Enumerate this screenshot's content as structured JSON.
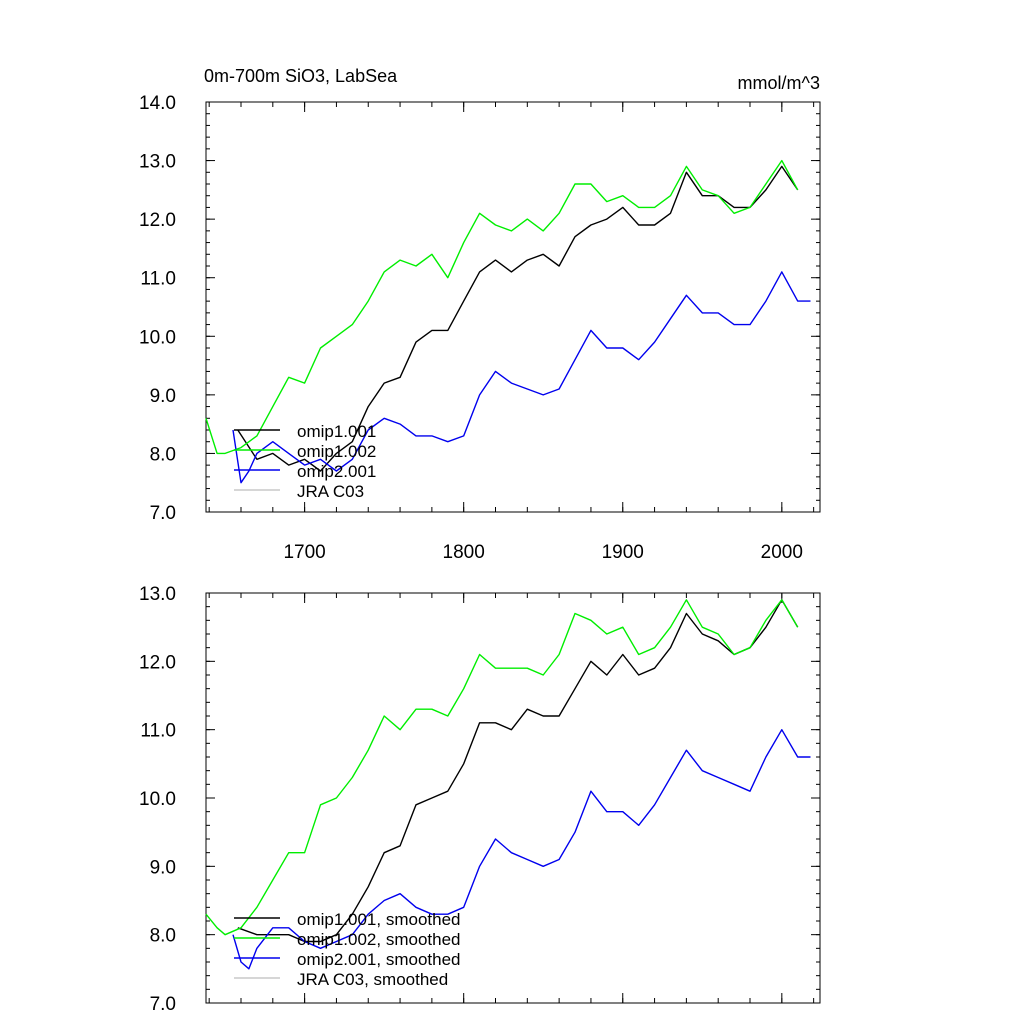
{
  "chart_data": [
    {
      "type": "line",
      "title": "0m-700m SiO3, LabSea",
      "units": "mmol/m^3",
      "xlim": [
        1638,
        2024
      ],
      "ylim": [
        7.0,
        14.0
      ],
      "x_ticks": [
        1700,
        1800,
        1900,
        2000
      ],
      "x_tick_labels": [
        "1700",
        "1800",
        "1900",
        "2000"
      ],
      "y_ticks": [
        7,
        8,
        9,
        10,
        11,
        12,
        13,
        14
      ],
      "y_tick_labels": [
        "7.0",
        "8.0",
        "9.0",
        "10.0",
        "11.0",
        "12.0",
        "13.0",
        "14.0"
      ],
      "legend_position": "bottom-left",
      "series": [
        {
          "name": "omip1.001",
          "color": "#000000",
          "x": [
            1658,
            1670,
            1680,
            1690,
            1700,
            1710,
            1720,
            1730,
            1740,
            1750,
            1760,
            1770,
            1780,
            1790,
            1800,
            1810,
            1820,
            1830,
            1840,
            1850,
            1860,
            1870,
            1880,
            1890,
            1900,
            1910,
            1920,
            1930,
            1940,
            1950,
            1960,
            1970,
            1980,
            1990,
            2000,
            2010
          ],
          "y": [
            8.4,
            7.9,
            8.0,
            7.8,
            7.9,
            7.7,
            8.0,
            8.2,
            8.8,
            9.2,
            9.3,
            9.9,
            10.1,
            10.1,
            10.6,
            11.1,
            11.3,
            11.1,
            11.3,
            11.4,
            11.2,
            11.7,
            11.9,
            12.0,
            12.2,
            11.9,
            11.9,
            12.1,
            12.8,
            12.4,
            12.4,
            12.2,
            12.2,
            12.5,
            12.9,
            12.5
          ]
        },
        {
          "name": "omip1.002",
          "color": "#00ee00",
          "x": [
            1638,
            1645,
            1650,
            1660,
            1670,
            1680,
            1690,
            1700,
            1710,
            1720,
            1730,
            1740,
            1750,
            1760,
            1770,
            1780,
            1790,
            1800,
            1810,
            1820,
            1830,
            1840,
            1850,
            1860,
            1870,
            1880,
            1890,
            1900,
            1910,
            1920,
            1930,
            1940,
            1950,
            1960,
            1970,
            1980,
            1990,
            2000,
            2010
          ],
          "y": [
            8.6,
            8.0,
            8.0,
            8.1,
            8.3,
            8.8,
            9.3,
            9.2,
            9.8,
            10.0,
            10.2,
            10.6,
            11.1,
            11.3,
            11.2,
            11.4,
            11.0,
            11.6,
            12.1,
            11.9,
            11.8,
            12.0,
            11.8,
            12.1,
            12.6,
            12.6,
            12.3,
            12.4,
            12.2,
            12.2,
            12.4,
            12.9,
            12.5,
            12.4,
            12.1,
            12.2,
            12.6,
            13.0,
            12.5
          ]
        },
        {
          "name": "omip2.001",
          "color": "#0000ee",
          "x": [
            1655,
            1660,
            1665,
            1670,
            1680,
            1690,
            1700,
            1710,
            1720,
            1730,
            1740,
            1750,
            1760,
            1770,
            1780,
            1790,
            1800,
            1810,
            1820,
            1830,
            1840,
            1850,
            1860,
            1870,
            1880,
            1890,
            1900,
            1910,
            1920,
            1930,
            1940,
            1950,
            1960,
            1970,
            1980,
            1990,
            2000,
            2010,
            2018
          ],
          "y": [
            8.4,
            7.5,
            7.7,
            8.0,
            8.2,
            8.0,
            7.8,
            7.9,
            7.7,
            7.9,
            8.4,
            8.6,
            8.5,
            8.3,
            8.3,
            8.2,
            8.3,
            9.0,
            9.4,
            9.2,
            9.1,
            9.0,
            9.1,
            9.6,
            10.1,
            9.8,
            9.8,
            9.6,
            9.9,
            10.3,
            10.7,
            10.4,
            10.4,
            10.2,
            10.2,
            10.6,
            11.1,
            10.6,
            10.6
          ]
        },
        {
          "name": "JRA C03",
          "color": "#c8c8c8",
          "x": [],
          "y": []
        }
      ]
    },
    {
      "type": "line",
      "title": "",
      "units": "",
      "xlim": [
        1638,
        2024
      ],
      "ylim": [
        7.0,
        13.0
      ],
      "x_ticks": [
        1700,
        1800,
        1900,
        2000
      ],
      "x_tick_labels": [],
      "y_ticks": [
        7,
        8,
        9,
        10,
        11,
        12,
        13
      ],
      "y_tick_labels": [
        "7.0",
        "8.0",
        "9.0",
        "10.0",
        "11.0",
        "12.0",
        "13.0"
      ],
      "legend_position": "bottom-left",
      "series": [
        {
          "name": "omip1.001, smoothed",
          "color": "#000000",
          "x": [
            1658,
            1670,
            1680,
            1690,
            1700,
            1710,
            1720,
            1730,
            1740,
            1750,
            1760,
            1770,
            1780,
            1790,
            1800,
            1810,
            1820,
            1830,
            1840,
            1850,
            1860,
            1870,
            1880,
            1890,
            1900,
            1910,
            1920,
            1930,
            1940,
            1950,
            1960,
            1970,
            1980,
            1990,
            2000,
            2010
          ],
          "y": [
            8.1,
            8.0,
            8.0,
            8.0,
            7.9,
            7.9,
            8.0,
            8.3,
            8.7,
            9.2,
            9.3,
            9.9,
            10.0,
            10.1,
            10.5,
            11.1,
            11.1,
            11.0,
            11.3,
            11.2,
            11.2,
            11.6,
            12.0,
            11.8,
            12.1,
            11.8,
            11.9,
            12.2,
            12.7,
            12.4,
            12.3,
            12.1,
            12.2,
            12.5,
            12.9,
            12.5
          ]
        },
        {
          "name": "omip1.002, smoothed",
          "color": "#00ee00",
          "x": [
            1638,
            1645,
            1650,
            1660,
            1670,
            1680,
            1690,
            1700,
            1710,
            1720,
            1730,
            1740,
            1750,
            1760,
            1770,
            1780,
            1790,
            1800,
            1810,
            1820,
            1830,
            1840,
            1850,
            1860,
            1870,
            1880,
            1890,
            1900,
            1910,
            1920,
            1930,
            1940,
            1950,
            1960,
            1970,
            1980,
            1990,
            2000,
            2010
          ],
          "y": [
            8.3,
            8.1,
            8.0,
            8.1,
            8.4,
            8.8,
            9.2,
            9.2,
            9.9,
            10.0,
            10.3,
            10.7,
            11.2,
            11.0,
            11.3,
            11.3,
            11.2,
            11.6,
            12.1,
            11.9,
            11.9,
            11.9,
            11.8,
            12.1,
            12.7,
            12.6,
            12.4,
            12.5,
            12.1,
            12.2,
            12.5,
            12.9,
            12.5,
            12.4,
            12.1,
            12.2,
            12.6,
            12.9,
            12.5
          ]
        },
        {
          "name": "omip2.001, smoothed",
          "color": "#0000ee",
          "x": [
            1655,
            1660,
            1665,
            1670,
            1680,
            1690,
            1700,
            1710,
            1720,
            1730,
            1740,
            1750,
            1760,
            1770,
            1780,
            1790,
            1800,
            1810,
            1820,
            1830,
            1840,
            1850,
            1860,
            1870,
            1880,
            1890,
            1900,
            1910,
            1920,
            1930,
            1940,
            1950,
            1960,
            1970,
            1980,
            1990,
            2000,
            2010,
            2018
          ],
          "y": [
            8.0,
            7.6,
            7.5,
            7.8,
            8.1,
            8.1,
            7.9,
            7.8,
            7.9,
            8.0,
            8.3,
            8.5,
            8.6,
            8.4,
            8.3,
            8.3,
            8.4,
            9.0,
            9.4,
            9.2,
            9.1,
            9.0,
            9.1,
            9.5,
            10.1,
            9.8,
            9.8,
            9.6,
            9.9,
            10.3,
            10.7,
            10.4,
            10.3,
            10.2,
            10.1,
            10.6,
            11.0,
            10.6,
            10.6
          ]
        },
        {
          "name": "JRA C03, smoothed",
          "color": "#c8c8c8",
          "x": [],
          "y": []
        }
      ]
    }
  ]
}
